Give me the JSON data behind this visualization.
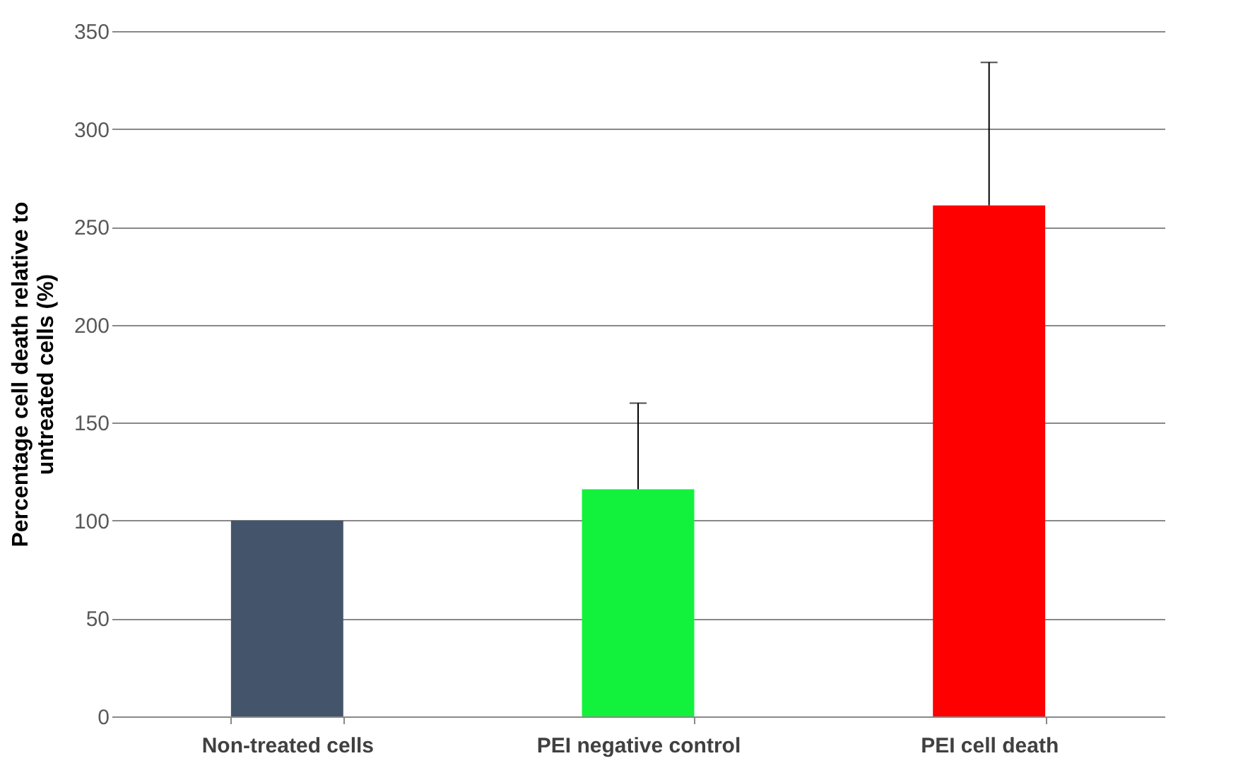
{
  "chart_data": {
    "type": "bar",
    "ylabel": "Percentage cell death relative to untreated cells (%)",
    "categories": [
      "Non-treated cells",
      "PEI negative control",
      "PEI cell death"
    ],
    "values": [
      100,
      116,
      261
    ],
    "colors": [
      "#44546a",
      "#12f23c",
      "#ff0000"
    ],
    "errors": [
      null,
      [
        116,
        160
      ],
      [
        261,
        334
      ]
    ],
    "ylim": [
      0,
      350
    ],
    "yticks": [
      0,
      50,
      100,
      150,
      200,
      250,
      300,
      350
    ],
    "grid": "y"
  }
}
